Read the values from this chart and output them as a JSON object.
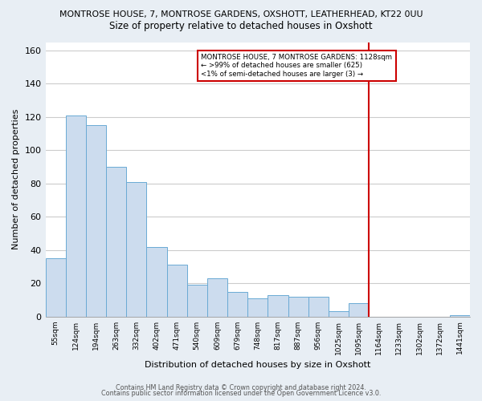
{
  "title_line1": "MONTROSE HOUSE, 7, MONTROSE GARDENS, OXSHOTT, LEATHERHEAD, KT22 0UU",
  "title_line2": "Size of property relative to detached houses in Oxshott",
  "xlabel": "Distribution of detached houses by size in Oxshott",
  "ylabel": "Number of detached properties",
  "bin_labels": [
    "55sqm",
    "124sqm",
    "194sqm",
    "263sqm",
    "332sqm",
    "402sqm",
    "471sqm",
    "540sqm",
    "609sqm",
    "679sqm",
    "748sqm",
    "817sqm",
    "887sqm",
    "956sqm",
    "1025sqm",
    "1095sqm",
    "1164sqm",
    "1233sqm",
    "1302sqm",
    "1372sqm",
    "1441sqm"
  ],
  "bar_heights": [
    35,
    121,
    115,
    90,
    81,
    42,
    31,
    19,
    23,
    15,
    11,
    13,
    12,
    12,
    3,
    8,
    0,
    0,
    0,
    0,
    1
  ],
  "bar_color": "#ccdcee",
  "bar_edge_color": "#6aaad4",
  "vline_x": 15.5,
  "vline_color": "#cc0000",
  "annotation_box_text": "MONTROSE HOUSE, 7 MONTROSE GARDENS: 1128sqm\n← >99% of detached houses are smaller (625)\n<1% of semi-detached houses are larger (3) →",
  "annotation_box_color": "#cc0000",
  "annotation_box_facecolor": "#ffffff",
  "ylim": [
    0,
    165
  ],
  "yticks": [
    0,
    20,
    40,
    60,
    80,
    100,
    120,
    140,
    160
  ],
  "footer_line1": "Contains HM Land Registry data © Crown copyright and database right 2024.",
  "footer_line2": "Contains public sector information licensed under the Open Government Licence v3.0.",
  "fig_facecolor": "#e8eef4",
  "axes_facecolor": "#ffffff",
  "grid_color": "#cccccc"
}
